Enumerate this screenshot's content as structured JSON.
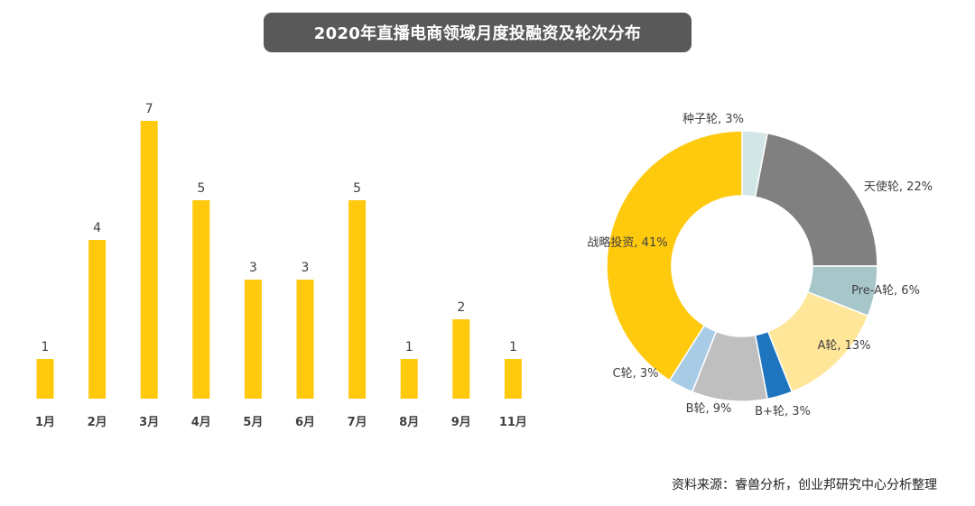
{
  "title": "2020年直播电商领域月度投融资及轮次分布",
  "source": "资料来源：睿兽分析，创业邦研究中心分析整理",
  "colors": {
    "bar": "#FFC90E",
    "title_bg": "#595959"
  },
  "chart_data": [
    {
      "type": "bar",
      "categories": [
        "1月",
        "2月",
        "3月",
        "4月",
        "5月",
        "6月",
        "7月",
        "8月",
        "9月",
        "11月"
      ],
      "values": [
        1,
        4,
        7,
        5,
        3,
        3,
        5,
        1,
        2,
        1
      ],
      "grid": false
    },
    {
      "type": "pie",
      "donut": true,
      "slices": [
        {
          "label": "种子轮, 3%",
          "value": 3,
          "color": "#D3E6E6"
        },
        {
          "label": "天使轮, 22%",
          "value": 22,
          "color": "#808080"
        },
        {
          "label": "Pre-A轮, 6%",
          "value": 6,
          "color": "#A6C6C9"
        },
        {
          "label": "A轮, 13%",
          "value": 13,
          "color": "#FFE699"
        },
        {
          "label": "B+轮, 3%",
          "value": 3,
          "color": "#1F74BE"
        },
        {
          "label": "B轮, 9%",
          "value": 9,
          "color": "#BFBFBF"
        },
        {
          "label": "C轮, 3%",
          "value": 3,
          "color": "#A9CCE6"
        },
        {
          "label": "战略投资, 41%",
          "value": 41,
          "color": "#FFC90E"
        }
      ]
    }
  ]
}
